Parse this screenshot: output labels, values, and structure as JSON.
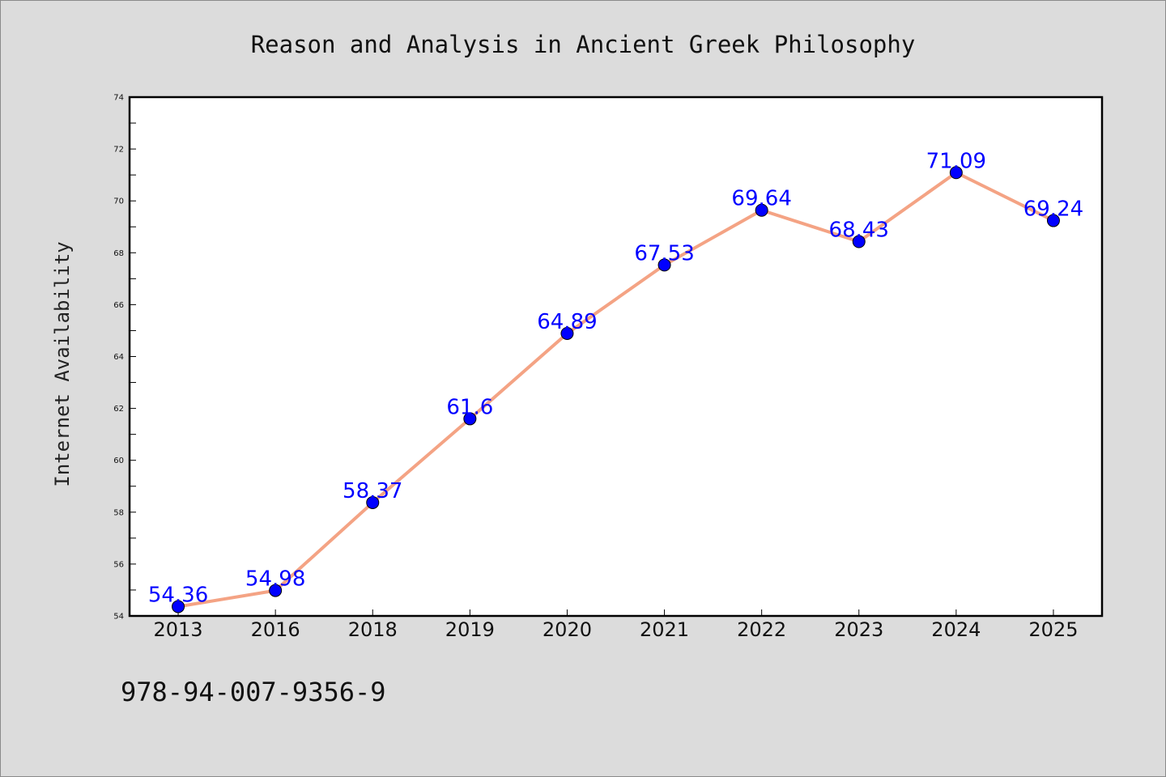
{
  "chart_data": {
    "type": "line",
    "title": "Reason and Analysis in Ancient Greek Philosophy",
    "ylabel": "Internet Availability",
    "xlabel": "",
    "categories": [
      "2013",
      "2016",
      "2018",
      "2019",
      "2020",
      "2021",
      "2022",
      "2023",
      "2024",
      "2025"
    ],
    "series": [
      {
        "values": [
          54.36,
          54.98,
          58.37,
          61.6,
          64.89,
          67.53,
          69.64,
          68.43,
          71.09,
          69.24
        ],
        "data_labels": [
          "54.36",
          "54.98",
          "58.37",
          "61.6",
          "64.89",
          "67.53",
          "69.64",
          "68.43",
          "71.09",
          "69.24"
        ],
        "line_color": "#f4a384",
        "marker_color": "#0000ff"
      }
    ],
    "ylim": [
      54,
      74
    ],
    "yticks": [
      54,
      56,
      58,
      60,
      62,
      64,
      66,
      68,
      70,
      72,
      74
    ],
    "grid": false,
    "legend": "none",
    "label_color": "#0000ff"
  },
  "footer": {
    "isbn": "978-94-007-9356-9"
  }
}
